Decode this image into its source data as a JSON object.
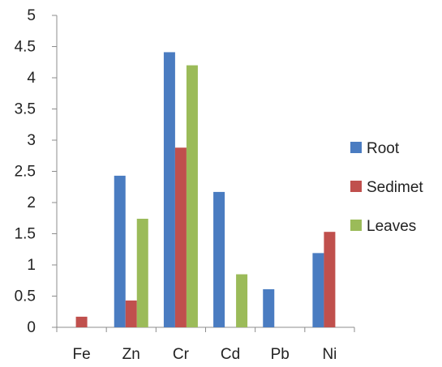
{
  "chart_data": {
    "type": "bar",
    "categories": [
      "Fe",
      "Zn",
      "Cr",
      "Cd",
      "Pb",
      "Ni"
    ],
    "series": [
      {
        "name": "Root",
        "color": "#4a7cc1",
        "values": [
          0,
          2.43,
          4.41,
          2.17,
          0.61,
          1.19
        ]
      },
      {
        "name": "Sedimet",
        "color": "#c0504d",
        "values": [
          0.17,
          0.43,
          2.88,
          0,
          0,
          1.53
        ]
      },
      {
        "name": "Leaves",
        "color": "#9bbb59",
        "values": [
          0,
          1.74,
          4.2,
          0.85,
          0,
          0
        ]
      }
    ],
    "ylim": [
      0,
      5
    ],
    "yticks": [
      "0",
      "0.5",
      "1",
      "1.5",
      "2",
      "2.5",
      "3",
      "3.5",
      "4",
      "4.5",
      "5"
    ],
    "grid": false,
    "legend_position": "right"
  }
}
